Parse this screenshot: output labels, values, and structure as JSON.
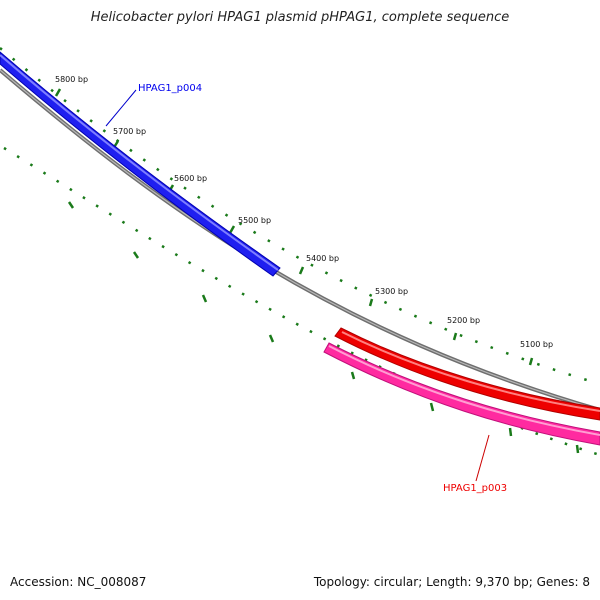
{
  "title": "Helicobacter pylori HPAG1 plasmid pHPAG1, complete sequence",
  "footer": {
    "accession": "Accession: NC_008087",
    "summary": "Topology: circular; Length: 9,370 bp; Genes: 8"
  },
  "ticks": [
    {
      "label": "5800 bp",
      "bp": 5800
    },
    {
      "label": "5700 bp",
      "bp": 5700
    },
    {
      "label": "5600 bp",
      "bp": 5600
    },
    {
      "label": "5500 bp",
      "bp": 5500
    },
    {
      "label": "5400 bp",
      "bp": 5400
    },
    {
      "label": "5300 bp",
      "bp": 5300
    },
    {
      "label": "5200 bp",
      "bp": 5200
    },
    {
      "label": "5100 bp",
      "bp": 5100
    }
  ],
  "genes": [
    {
      "name": "HPAG1_p004",
      "color": "#0000ee",
      "strand": "forward"
    },
    {
      "name": "HPAG1_p003",
      "color": "#ee0000",
      "strand": "reverse"
    }
  ],
  "colors": {
    "backbone": "#808080",
    "tick_marks": "#1a7a1a",
    "forward_gene": "#1f1ff0",
    "reverse_gene": "#ee0000",
    "reverse_track": "#ff2aa0"
  }
}
